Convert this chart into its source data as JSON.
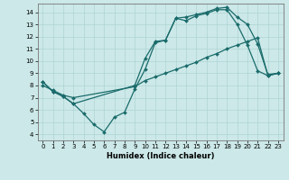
{
  "title": "",
  "xlabel": "Humidex (Indice chaleur)",
  "xlim": [
    -0.5,
    23.5
  ],
  "ylim": [
    3.5,
    14.7
  ],
  "xticks": [
    0,
    1,
    2,
    3,
    4,
    5,
    6,
    7,
    8,
    9,
    10,
    11,
    12,
    13,
    14,
    15,
    16,
    17,
    18,
    19,
    20,
    21,
    22,
    23
  ],
  "yticks": [
    4,
    5,
    6,
    7,
    8,
    9,
    10,
    11,
    12,
    13,
    14
  ],
  "bg_color": "#cce8e8",
  "grid_color": "#aed4d4",
  "line_color": "#1a6b6b",
  "line1_x": [
    0,
    1,
    2,
    3,
    4,
    5,
    6,
    7,
    8,
    9,
    10,
    11,
    12,
    13,
    14,
    15,
    16,
    17,
    18,
    19,
    20,
    21,
    22,
    23
  ],
  "line1_y": [
    8.3,
    7.5,
    7.1,
    6.5,
    5.7,
    4.8,
    4.2,
    5.4,
    5.8,
    7.7,
    9.3,
    11.5,
    11.7,
    13.5,
    13.3,
    13.7,
    13.9,
    14.2,
    14.2,
    13.0,
    11.3,
    9.2,
    8.8,
    9.0
  ],
  "line2_x": [
    0,
    1,
    2,
    3,
    9,
    10,
    11,
    12,
    13,
    14,
    15,
    16,
    17,
    18,
    19,
    20,
    21,
    22,
    23
  ],
  "line2_y": [
    8.3,
    7.5,
    7.1,
    6.5,
    8.0,
    10.2,
    11.6,
    11.7,
    13.5,
    13.6,
    13.8,
    14.0,
    14.3,
    14.4,
    13.6,
    13.0,
    11.4,
    8.9,
    9.0
  ],
  "line3_x": [
    0,
    1,
    2,
    3,
    9,
    10,
    11,
    12,
    13,
    14,
    15,
    16,
    17,
    18,
    19,
    20,
    21,
    22,
    23
  ],
  "line3_y": [
    8.0,
    7.6,
    7.2,
    7.0,
    7.9,
    8.4,
    8.7,
    9.0,
    9.3,
    9.6,
    9.9,
    10.3,
    10.6,
    11.0,
    11.3,
    11.6,
    11.9,
    8.8,
    9.0
  ]
}
